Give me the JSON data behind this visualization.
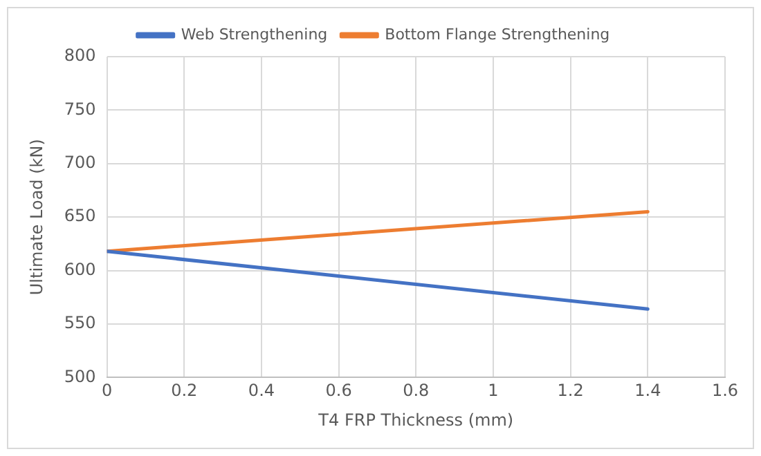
{
  "chart_data": {
    "type": "line",
    "xlabel": "T4 FRP Thickness (mm)",
    "ylabel": "Ultimate Load (kN)",
    "x": [
      0,
      1.4
    ],
    "series": [
      {
        "name": "Web Strengthening",
        "color": "#4472c4",
        "values": [
          618,
          564
        ]
      },
      {
        "name": "Bottom Flange Strengthening",
        "color": "#ed7d31",
        "values": [
          618,
          655
        ]
      }
    ],
    "xlim": [
      0,
      1.6
    ],
    "xticks": [
      0,
      0.2,
      0.4,
      0.6,
      0.8,
      1,
      1.2,
      1.4,
      1.6
    ],
    "ylim": [
      500,
      800
    ],
    "yticks": [
      500,
      550,
      600,
      650,
      700,
      750,
      800
    ],
    "grid": true,
    "legend": "top",
    "marker": "none",
    "line_style": "solid"
  }
}
